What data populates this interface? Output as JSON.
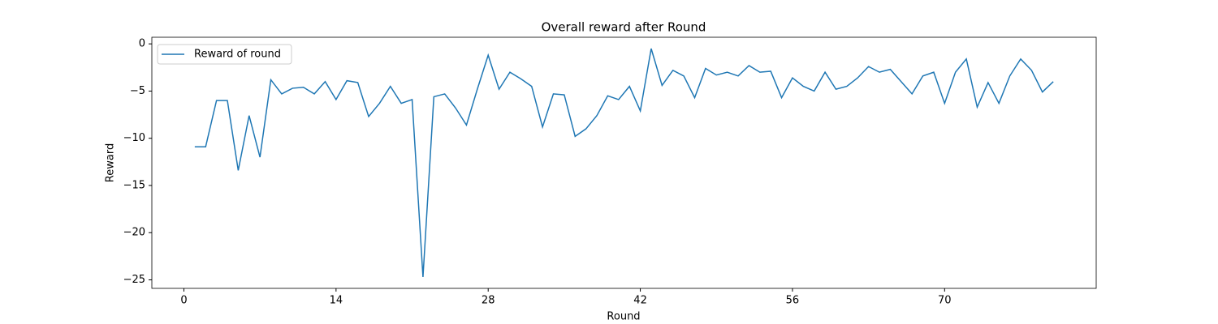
{
  "chart_data": {
    "type": "line",
    "title": "Overall reward after Round",
    "x_label": "Round",
    "y_label": "Reward",
    "x": [
      1,
      2,
      3,
      4,
      5,
      6,
      7,
      8,
      9,
      10,
      11,
      12,
      13,
      14,
      15,
      16,
      17,
      18,
      19,
      20,
      21,
      22,
      23,
      24,
      25,
      26,
      27,
      28,
      29,
      30,
      31,
      32,
      33,
      34,
      35,
      36,
      37,
      38,
      39,
      40,
      41,
      42,
      43,
      44,
      45,
      46,
      47,
      48,
      49,
      50,
      51,
      52,
      53,
      54,
      55,
      56,
      57,
      58,
      59,
      60,
      61,
      62,
      63,
      64,
      65,
      66,
      67,
      68,
      69,
      70,
      71,
      72,
      73,
      74,
      75,
      76,
      77,
      78,
      79,
      80
    ],
    "series": [
      {
        "name": "Reward of round",
        "color": "#1f77b4",
        "values": [
          -10.9,
          -10.9,
          -6.0,
          -6.0,
          -13.4,
          -7.6,
          -12.0,
          -3.8,
          -5.3,
          -4.7,
          -4.6,
          -5.3,
          -4.0,
          -5.9,
          -3.9,
          -4.1,
          -7.7,
          -6.3,
          -4.5,
          -6.3,
          -5.9,
          -24.7,
          -5.6,
          -5.3,
          -6.8,
          -8.6,
          -4.8,
          -1.2,
          -4.8,
          -3.0,
          -3.7,
          -4.5,
          -8.8,
          -5.3,
          -5.4,
          -9.8,
          -9.0,
          -7.6,
          -5.5,
          -5.9,
          -4.5,
          -7.1,
          -0.5,
          -4.4,
          -2.8,
          -3.4,
          -5.7,
          -2.6,
          -3.3,
          -3.0,
          -3.4,
          -2.3,
          -3.0,
          -2.9,
          -5.7,
          -3.6,
          -4.5,
          -5.0,
          -3.0,
          -4.8,
          -4.5,
          -3.6,
          -2.4,
          -3.0,
          -2.7,
          -4.0,
          -5.3,
          -3.4,
          -3.0,
          -6.3,
          -3.0,
          -1.6,
          -6.7,
          -4.1,
          -6.3,
          -3.4,
          -1.6,
          -2.8,
          -5.1,
          -4.0
        ]
      }
    ],
    "xlim": [
      -2.95,
      83.95
    ],
    "xticks": [
      0,
      14,
      28,
      42,
      56,
      70
    ],
    "ylim": [
      -25.9,
      0.7
    ],
    "yticks": [
      {
        "value": -25,
        "label": "−25"
      },
      {
        "value": -20,
        "label": "−20"
      },
      {
        "value": -15,
        "label": "−15"
      },
      {
        "value": -10,
        "label": "−10"
      },
      {
        "value": -5,
        "label": "−5"
      },
      0
    ],
    "legend": "upper left",
    "grid": false
  }
}
